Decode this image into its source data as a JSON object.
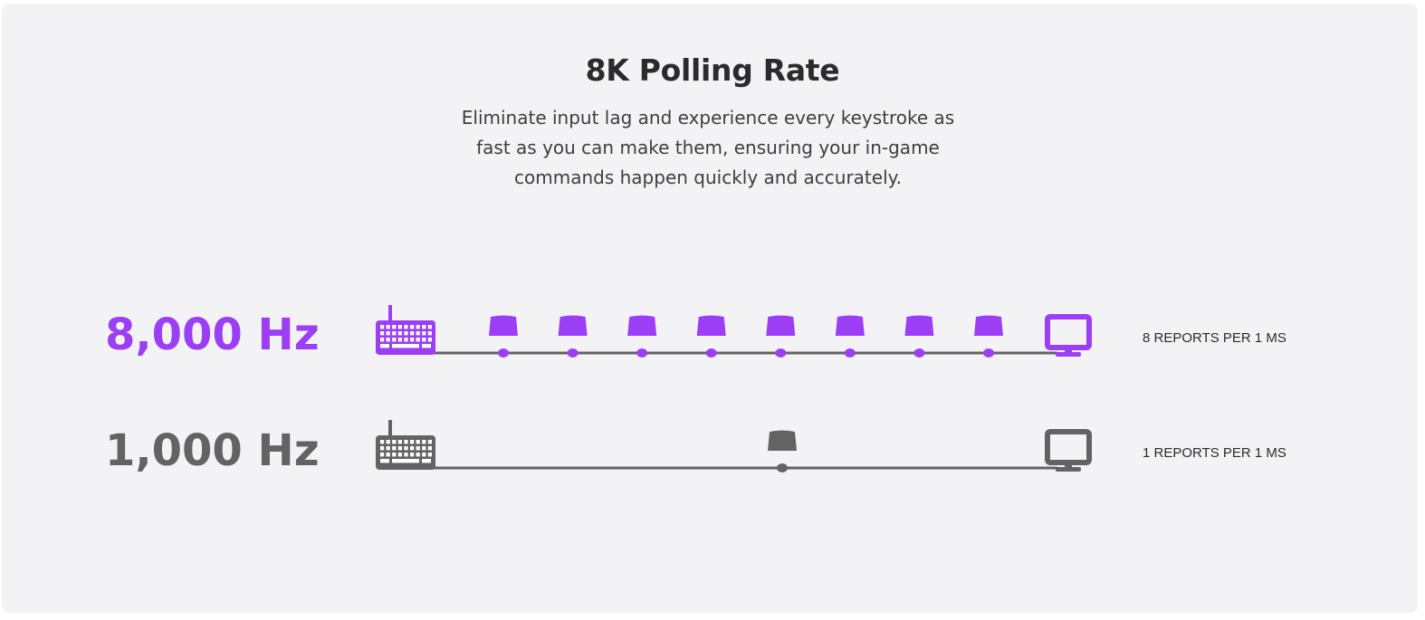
{
  "header": {
    "title": "8K Polling Rate",
    "description": "Eliminate input lag and experience every keystroke as fast as you can make them, ensuring your in-game commands happen quickly and accurately."
  },
  "colors": {
    "accent": "#9b3ef5",
    "neutral": "#636363",
    "background": "#f3f3f6",
    "text": "#2b2b2e"
  },
  "rows": [
    {
      "rate_label": "8,000 Hz",
      "reports_label": "8 REPORTS PER 1 MS",
      "reports_count": 8,
      "color_key": "accent",
      "icons": [
        "keyboard-icon",
        "keycap-icon",
        "monitor-icon"
      ]
    },
    {
      "rate_label": "1,000 Hz",
      "reports_label": "1 REPORTS PER 1 MS",
      "reports_count": 1,
      "color_key": "neutral",
      "icons": [
        "keyboard-icon",
        "keycap-icon",
        "monitor-icon"
      ]
    }
  ]
}
